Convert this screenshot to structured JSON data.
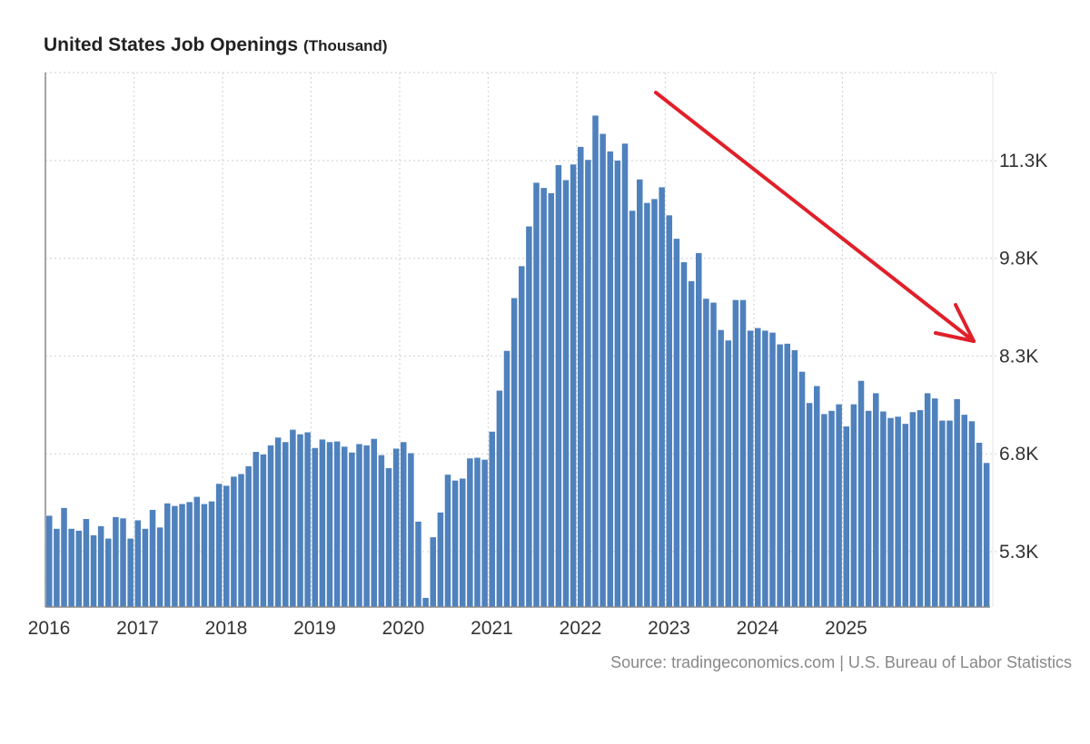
{
  "title": "United States Job Openings",
  "unit_label": "(Thousand)",
  "source": "Source: tradingeconomics.com | U.S. Bureau of Labor Statistics",
  "colors": {
    "bar": "#4f81bd",
    "arrow": "#e0202a",
    "grid": "#d6d6d6",
    "axis_text": "#333333"
  },
  "chart_data": {
    "type": "bar",
    "title": "United States Job Openings",
    "unit": "(Thousand)",
    "xlabel": "",
    "ylabel": "",
    "x_start": "2016-01",
    "x_tick_labels": [
      "2016",
      "2017",
      "2018",
      "2019",
      "2020",
      "2021",
      "2022",
      "2023",
      "2024",
      "2025"
    ],
    "y_ticks": [
      5300,
      6800,
      8300,
      9800,
      11300
    ],
    "y_tick_labels": [
      "5.3K",
      "6.8K",
      "8.3K",
      "9.8K",
      "11.3K"
    ],
    "ylim": [
      4450,
      12650
    ],
    "grid": true,
    "y_axis_position": "right",
    "annotation": "red arrow pointing down from the 2022 peak to late 2025",
    "values": [
      5850,
      5650,
      5970,
      5650,
      5620,
      5800,
      5550,
      5690,
      5500,
      5830,
      5810,
      5500,
      5780,
      5650,
      5940,
      5670,
      6040,
      6000,
      6030,
      6060,
      6140,
      6030,
      6070,
      6340,
      6310,
      6450,
      6490,
      6610,
      6830,
      6790,
      6930,
      7050,
      6980,
      7170,
      7100,
      7130,
      6890,
      7020,
      6980,
      6990,
      6910,
      6820,
      6950,
      6930,
      7030,
      6780,
      6580,
      6880,
      6980,
      6810,
      5760,
      4590,
      5520,
      5900,
      6480,
      6390,
      6420,
      6730,
      6740,
      6710,
      7140,
      7770,
      8380,
      9190,
      9680,
      10290,
      10960,
      10880,
      10800,
      11230,
      11000,
      11240,
      11510,
      11310,
      11990,
      11710,
      11440,
      11300,
      11560,
      10530,
      11010,
      10650,
      10710,
      10890,
      10460,
      10100,
      9740,
      9450,
      9880,
      9180,
      9120,
      8700,
      8540,
      9160,
      9160,
      8690,
      8730,
      8690,
      8660,
      8480,
      8490,
      8390,
      8060,
      7580,
      7840,
      7410,
      7460,
      7560,
      7220,
      7560,
      7920,
      7460,
      7730,
      7450,
      7350,
      7370,
      7260,
      7440,
      7470,
      7730,
      7650,
      7310,
      7310,
      7640,
      7400,
      7300,
      6970,
      6660
    ]
  }
}
